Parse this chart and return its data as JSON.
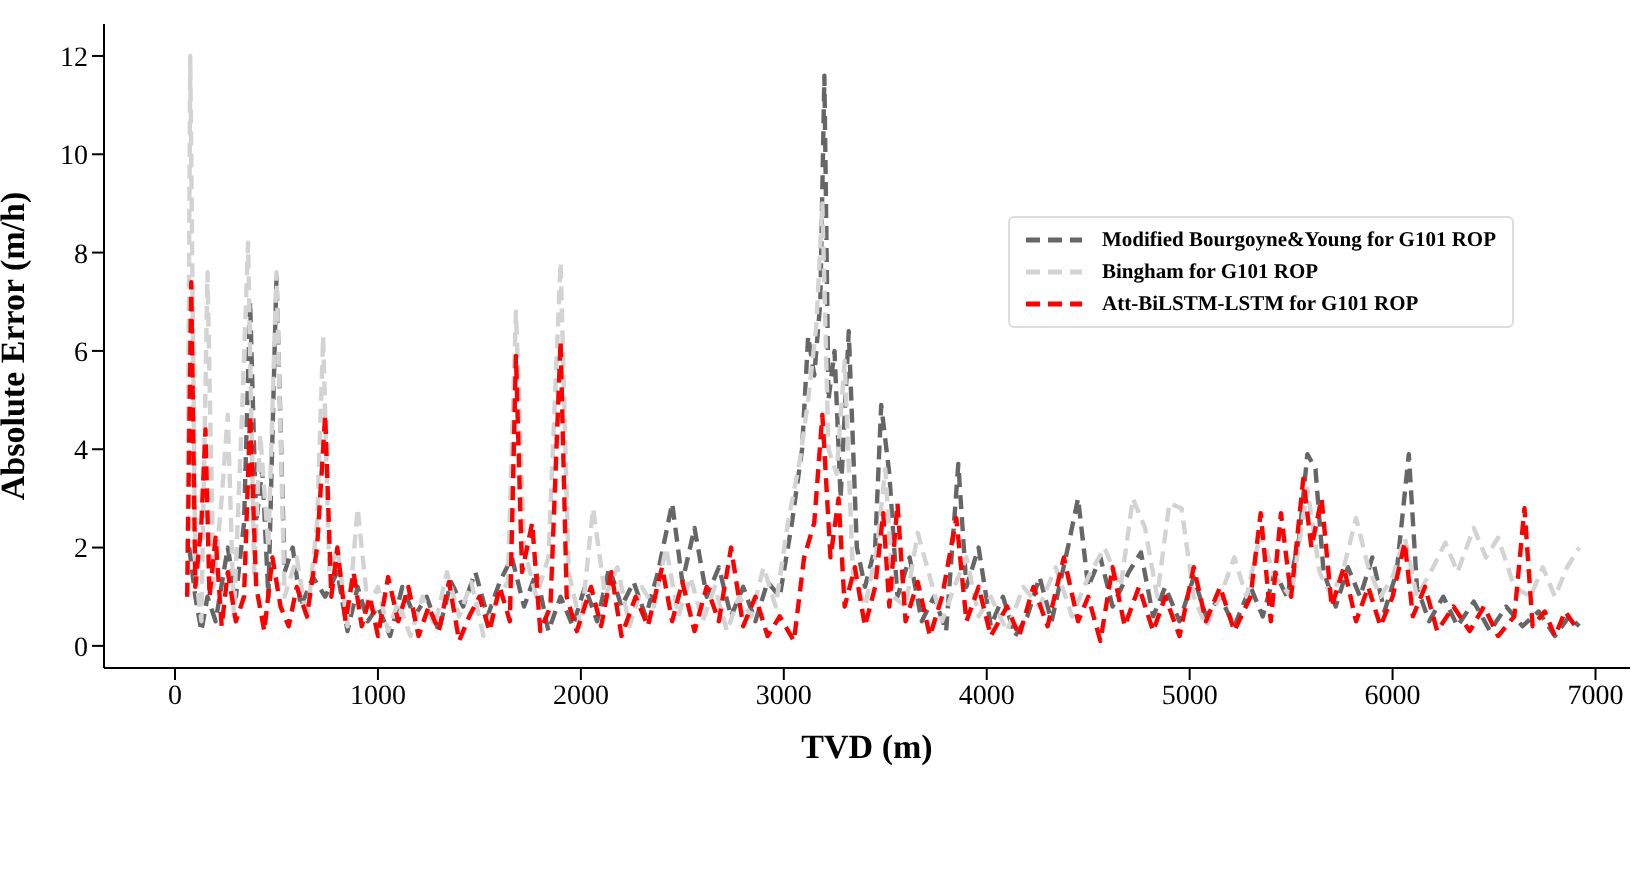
{
  "chart_data": {
    "type": "line",
    "xlabel": "TVD (m)",
    "ylabel": "Absolute Error (m/h)",
    "xlim": [
      -350,
      7170
    ],
    "ylim": [
      -0.45,
      12.65
    ],
    "xticks": [
      0,
      1000,
      2000,
      3000,
      4000,
      5000,
      6000,
      7000
    ],
    "yticks": [
      0,
      2,
      4,
      6,
      8,
      10,
      12
    ],
    "grid": false,
    "legend": "top right",
    "line_style": "dashed",
    "marker": "none",
    "series": [
      {
        "name": "Modified Bourgoyne&Young for G101 ROP",
        "color": "#666666",
        "x": [
          70,
          100,
          130,
          160,
          200,
          260,
          300,
          340,
          370,
          400,
          430,
          460,
          500,
          540,
          580,
          620,
          680,
          740,
          800,
          850,
          900,
          950,
          1000,
          1060,
          1120,
          1180,
          1240,
          1300,
          1360,
          1420,
          1480,
          1540,
          1600,
          1660,
          1720,
          1780,
          1840,
          1900,
          1960,
          2020,
          2080,
          2140,
          2200,
          2260,
          2320,
          2380,
          2450,
          2500,
          2560,
          2620,
          2680,
          2740,
          2800,
          2860,
          2920,
          2980,
          3040,
          3090,
          3120,
          3150,
          3180,
          3200,
          3220,
          3250,
          3280,
          3320,
          3360,
          3400,
          3450,
          3480,
          3520,
          3560,
          3620,
          3680,
          3740,
          3800,
          3860,
          3900,
          3960,
          4020,
          4080,
          4140,
          4200,
          4260,
          4320,
          4400,
          4450,
          4500,
          4560,
          4620,
          4700,
          4760,
          4820,
          4880,
          4950,
          5020,
          5080,
          5150,
          5220,
          5300,
          5360,
          5420,
          5480,
          5540,
          5580,
          5620,
          5660,
          5720,
          5780,
          5840,
          5900,
          5960,
          6020,
          6080,
          6120,
          6180,
          6250,
          6320,
          6400,
          6480,
          6560,
          6640,
          6720,
          6800,
          6870,
          6920
        ],
        "values": [
          2.0,
          1.0,
          0.3,
          1.0,
          0.5,
          2.0,
          1.0,
          2.5,
          7.0,
          2.5,
          3.6,
          1.0,
          7.5,
          1.5,
          2.0,
          0.8,
          1.4,
          1.0,
          1.5,
          0.3,
          1.2,
          0.5,
          0.8,
          0.2,
          1.2,
          0.6,
          1.0,
          0.3,
          1.3,
          0.8,
          1.5,
          0.6,
          1.3,
          1.8,
          0.8,
          1.5,
          0.3,
          1.0,
          0.4,
          1.2,
          0.5,
          1.6,
          0.8,
          1.3,
          0.6,
          1.5,
          2.9,
          1.3,
          2.4,
          1.0,
          1.6,
          0.6,
          1.2,
          0.5,
          1.3,
          1.0,
          2.5,
          4.0,
          6.3,
          5.5,
          7.0,
          11.6,
          5.0,
          6.0,
          3.0,
          6.4,
          2.0,
          1.2,
          2.0,
          4.9,
          3.5,
          1.0,
          1.8,
          0.5,
          1.0,
          0.3,
          3.7,
          1.2,
          2.0,
          0.4,
          1.0,
          0.2,
          0.6,
          1.4,
          0.5,
          2.0,
          3.0,
          1.2,
          1.8,
          0.8,
          1.5,
          1.9,
          0.6,
          1.2,
          0.5,
          1.4,
          0.6,
          1.0,
          0.4,
          1.2,
          0.6,
          1.5,
          1.0,
          2.2,
          3.9,
          3.6,
          1.5,
          0.8,
          1.6,
          1.0,
          1.8,
          0.7,
          1.5,
          3.9,
          1.2,
          0.5,
          1.0,
          0.4,
          0.9,
          0.3,
          0.8,
          0.4,
          0.7,
          0.2,
          0.6,
          0.4
        ]
      },
      {
        "name": "Bingham for G101 ROP",
        "color": "#d3d3d3",
        "x": [
          60,
          75,
          100,
          130,
          160,
          190,
          230,
          260,
          290,
          330,
          360,
          390,
          420,
          460,
          500,
          540,
          600,
          650,
          700,
          730,
          760,
          800,
          850,
          900,
          950,
          1000,
          1050,
          1100,
          1160,
          1220,
          1280,
          1340,
          1400,
          1460,
          1520,
          1580,
          1640,
          1680,
          1720,
          1780,
          1840,
          1900,
          1940,
          2000,
          2060,
          2120,
          2180,
          2240,
          2300,
          2360,
          2420,
          2480,
          2540,
          2600,
          2660,
          2720,
          2780,
          2840,
          2900,
          2960,
          3020,
          3080,
          3120,
          3160,
          3190,
          3220,
          3260,
          3300,
          3340,
          3400,
          3460,
          3500,
          3540,
          3600,
          3660,
          3720,
          3780,
          3840,
          3900,
          3960,
          4020,
          4100,
          4180,
          4260,
          4340,
          4420,
          4500,
          4580,
          4660,
          4720,
          4780,
          4840,
          4900,
          4960,
          5020,
          5080,
          5150,
          5220,
          5280,
          5350,
          5420,
          5500,
          5580,
          5640,
          5700,
          5760,
          5820,
          5880,
          5940,
          6000,
          6060,
          6120,
          6200,
          6260,
          6320,
          6400,
          6460,
          6520,
          6600,
          6680,
          6740,
          6800,
          6860,
          6920
        ],
        "values": [
          1.0,
          12.0,
          1.5,
          0.5,
          7.6,
          1.2,
          3.0,
          4.7,
          0.6,
          4.7,
          8.2,
          1.5,
          4.3,
          2.0,
          7.6,
          1.0,
          1.8,
          0.5,
          2.5,
          6.3,
          1.5,
          2.0,
          0.4,
          2.8,
          0.8,
          1.2,
          0.3,
          0.9,
          0.2,
          1.0,
          0.4,
          1.5,
          0.6,
          1.3,
          0.2,
          0.9,
          1.3,
          6.8,
          2.0,
          1.0,
          1.8,
          7.8,
          1.5,
          0.4,
          2.8,
          1.0,
          1.6,
          0.4,
          1.2,
          0.8,
          2.0,
          0.6,
          1.4,
          0.5,
          1.2,
          0.3,
          1.0,
          0.6,
          1.6,
          0.8,
          2.5,
          3.8,
          5.0,
          6.5,
          9.0,
          4.0,
          3.5,
          5.8,
          1.5,
          0.8,
          2.0,
          3.6,
          1.0,
          0.8,
          2.3,
          1.4,
          0.5,
          1.2,
          1.8,
          0.6,
          1.0,
          0.3,
          1.2,
          0.8,
          1.6,
          0.6,
          1.4,
          2.0,
          1.2,
          3.0,
          2.4,
          1.0,
          2.9,
          2.8,
          1.0,
          0.4,
          1.0,
          1.8,
          1.0,
          2.3,
          1.4,
          1.0,
          3.2,
          1.5,
          1.0,
          1.6,
          2.6,
          1.6,
          1.0,
          1.4,
          2.2,
          1.0,
          1.6,
          2.1,
          1.5,
          2.4,
          1.8,
          2.2,
          1.2,
          1.0,
          1.6,
          1.0,
          1.6,
          2.0
        ]
      },
      {
        "name": "Att-BiLSTM-LSTM for G101 ROP",
        "color": "#ff0000",
        "x": [
          60,
          80,
          100,
          130,
          150,
          170,
          200,
          230,
          260,
          300,
          340,
          370,
          400,
          440,
          480,
          520,
          560,
          600,
          650,
          700,
          740,
          770,
          800,
          840,
          880,
          920,
          960,
          1000,
          1050,
          1100,
          1150,
          1200,
          1250,
          1300,
          1350,
          1400,
          1450,
          1500,
          1550,
          1600,
          1650,
          1680,
          1710,
          1760,
          1800,
          1850,
          1900,
          1930,
          1980,
          2050,
          2100,
          2150,
          2200,
          2270,
          2330,
          2400,
          2450,
          2500,
          2560,
          2620,
          2680,
          2740,
          2800,
          2860,
          2920,
          2980,
          3050,
          3100,
          3150,
          3190,
          3230,
          3270,
          3300,
          3350,
          3400,
          3450,
          3490,
          3520,
          3560,
          3600,
          3660,
          3720,
          3780,
          3850,
          3900,
          3960,
          4020,
          4100,
          4160,
          4230,
          4300,
          4380,
          4450,
          4500,
          4560,
          4620,
          4680,
          4750,
          4820,
          4880,
          4950,
          5020,
          5080,
          5150,
          5220,
          5300,
          5350,
          5400,
          5450,
          5500,
          5560,
          5600,
          5650,
          5700,
          5760,
          5820,
          5880,
          5940,
          6000,
          6060,
          6100,
          6160,
          6220,
          6300,
          6380,
          6450,
          6520,
          6600,
          6650,
          6690,
          6750,
          6800,
          6850,
          6900
        ],
        "values": [
          1.0,
          7.4,
          1.2,
          2.5,
          4.4,
          1.0,
          2.2,
          0.4,
          1.5,
          0.5,
          1.0,
          4.7,
          1.2,
          0.3,
          1.8,
          0.8,
          0.4,
          1.2,
          0.6,
          2.0,
          4.7,
          1.0,
          2.0,
          0.5,
          1.5,
          0.4,
          1.0,
          0.2,
          1.4,
          0.5,
          1.2,
          0.2,
          0.8,
          0.3,
          1.3,
          0.1,
          0.6,
          1.0,
          0.3,
          1.2,
          0.5,
          5.9,
          1.5,
          2.5,
          0.3,
          0.8,
          6.2,
          1.0,
          0.3,
          1.2,
          0.4,
          1.5,
          0.2,
          1.0,
          0.4,
          1.6,
          0.5,
          1.3,
          0.3,
          1.2,
          0.5,
          2.0,
          0.4,
          1.0,
          0.2,
          0.6,
          0.1,
          1.8,
          2.5,
          4.7,
          1.8,
          3.0,
          0.8,
          1.6,
          0.4,
          1.2,
          2.7,
          0.8,
          2.9,
          0.5,
          1.3,
          0.2,
          1.0,
          2.6,
          0.5,
          1.2,
          0.2,
          0.8,
          0.2,
          1.2,
          0.4,
          1.8,
          0.5,
          1.0,
          0.1,
          1.6,
          0.4,
          1.2,
          0.3,
          1.0,
          0.2,
          1.6,
          0.5,
          1.2,
          0.3,
          1.0,
          2.7,
          0.5,
          2.7,
          1.0,
          3.4,
          2.0,
          3.0,
          0.8,
          1.6,
          0.5,
          1.2,
          0.4,
          1.0,
          2.1,
          0.6,
          1.2,
          0.3,
          0.8,
          0.3,
          0.8,
          0.2,
          0.6,
          2.8,
          0.4,
          0.7,
          0.2,
          0.7,
          0.4
        ]
      }
    ]
  }
}
